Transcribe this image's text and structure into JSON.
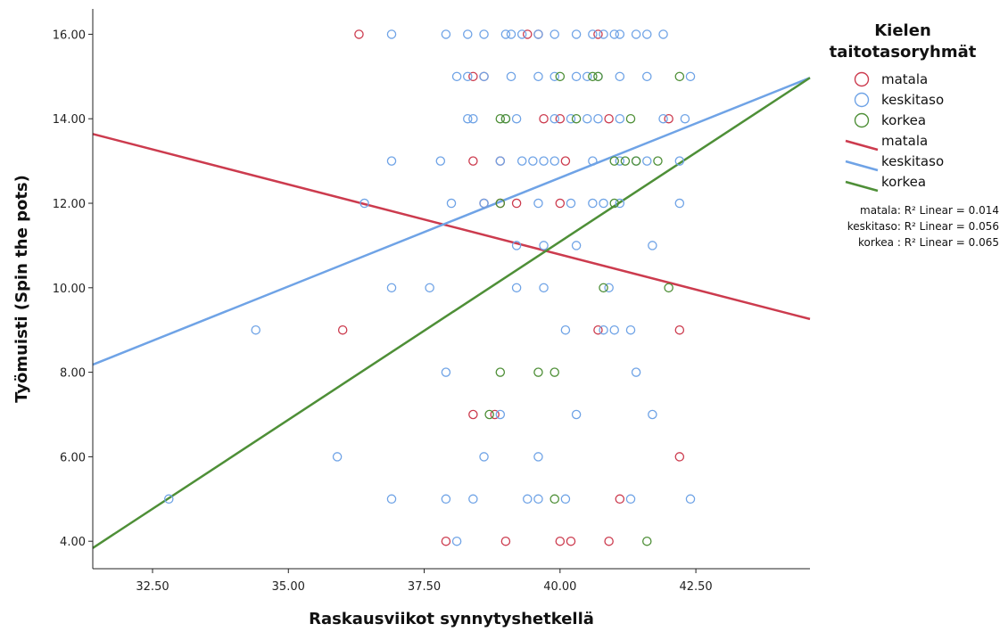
{
  "chart_data": {
    "type": "scatter",
    "xlabel": "Raskausviikot synnytyshetkellä",
    "ylabel": "Työmuisti (Spin the pots)",
    "xlim": [
      31.4,
      44.6
    ],
    "ylim": [
      3.35,
      16.6
    ],
    "x_ticks": [
      {
        "value": 32.5,
        "label": "32.50"
      },
      {
        "value": 35.0,
        "label": "35.00"
      },
      {
        "value": 37.5,
        "label": "37.50"
      },
      {
        "value": 40.0,
        "label": "40.00"
      },
      {
        "value": 42.5,
        "label": "42.50"
      }
    ],
    "y_ticks": [
      {
        "value": 4,
        "label": "4.00"
      },
      {
        "value": 6,
        "label": "6.00"
      },
      {
        "value": 8,
        "label": "8.00"
      },
      {
        "value": 10,
        "label": "10.00"
      },
      {
        "value": 12,
        "label": "12.00"
      },
      {
        "value": 14,
        "label": "14.00"
      },
      {
        "value": 16,
        "label": "16.00"
      }
    ],
    "grid": false,
    "legend_position": "right",
    "legend_title": "Kielen taitotasoryhmät",
    "series": [
      {
        "name": "matala",
        "color": "#cc3b4e",
        "points": [
          [
            36.3,
            16
          ],
          [
            39.4,
            16
          ],
          [
            39.6,
            16
          ],
          [
            40.7,
            16
          ],
          [
            38.4,
            15
          ],
          [
            38.6,
            15
          ],
          [
            39.7,
            14
          ],
          [
            40.0,
            14
          ],
          [
            40.9,
            14
          ],
          [
            42.0,
            14
          ],
          [
            38.4,
            13
          ],
          [
            38.9,
            13
          ],
          [
            40.1,
            13
          ],
          [
            38.6,
            12
          ],
          [
            38.9,
            12
          ],
          [
            39.2,
            12
          ],
          [
            40.0,
            12
          ],
          [
            36.0,
            9
          ],
          [
            40.7,
            9
          ],
          [
            42.2,
            9
          ],
          [
            38.4,
            7
          ],
          [
            38.8,
            7
          ],
          [
            42.2,
            6
          ],
          [
            41.1,
            5
          ],
          [
            37.9,
            4
          ],
          [
            39.0,
            4
          ],
          [
            40.0,
            4
          ],
          [
            40.2,
            4
          ],
          [
            40.9,
            4
          ]
        ],
        "fit": {
          "x": [
            31.4,
            44.6
          ],
          "y": [
            13.64,
            9.26
          ]
        },
        "r2_label": "matala: R² Linear = 0.014"
      },
      {
        "name": "keskitaso",
        "color": "#6fa3e6",
        "points": [
          [
            36.9,
            16
          ],
          [
            37.9,
            16
          ],
          [
            38.3,
            16
          ],
          [
            38.6,
            16
          ],
          [
            39.0,
            16
          ],
          [
            39.1,
            16
          ],
          [
            39.3,
            16
          ],
          [
            39.6,
            16
          ],
          [
            39.9,
            16
          ],
          [
            40.3,
            16
          ],
          [
            40.6,
            16
          ],
          [
            40.8,
            16
          ],
          [
            41.0,
            16
          ],
          [
            41.1,
            16
          ],
          [
            41.4,
            16
          ],
          [
            41.6,
            16
          ],
          [
            41.9,
            16
          ],
          [
            38.1,
            15
          ],
          [
            38.3,
            15
          ],
          [
            38.6,
            15
          ],
          [
            39.1,
            15
          ],
          [
            39.6,
            15
          ],
          [
            39.9,
            15
          ],
          [
            40.3,
            15
          ],
          [
            40.5,
            15
          ],
          [
            40.7,
            15
          ],
          [
            41.1,
            15
          ],
          [
            41.6,
            15
          ],
          [
            42.4,
            15
          ],
          [
            38.3,
            14
          ],
          [
            38.4,
            14
          ],
          [
            39.0,
            14
          ],
          [
            39.2,
            14
          ],
          [
            39.9,
            14
          ],
          [
            40.2,
            14
          ],
          [
            40.5,
            14
          ],
          [
            40.7,
            14
          ],
          [
            41.1,
            14
          ],
          [
            41.9,
            14
          ],
          [
            42.3,
            14
          ],
          [
            36.9,
            13
          ],
          [
            37.8,
            13
          ],
          [
            38.9,
            13
          ],
          [
            39.3,
            13
          ],
          [
            39.5,
            13
          ],
          [
            39.7,
            13
          ],
          [
            39.9,
            13
          ],
          [
            40.6,
            13
          ],
          [
            41.1,
            13
          ],
          [
            41.4,
            13
          ],
          [
            41.6,
            13
          ],
          [
            42.2,
            13
          ],
          [
            36.4,
            12
          ],
          [
            38.0,
            12
          ],
          [
            38.6,
            12
          ],
          [
            39.6,
            12
          ],
          [
            40.2,
            12
          ],
          [
            40.6,
            12
          ],
          [
            40.8,
            12
          ],
          [
            41.1,
            12
          ],
          [
            42.2,
            12
          ],
          [
            39.2,
            11
          ],
          [
            39.7,
            11
          ],
          [
            40.3,
            11
          ],
          [
            41.7,
            11
          ],
          [
            36.9,
            10
          ],
          [
            37.6,
            10
          ],
          [
            39.2,
            10
          ],
          [
            39.7,
            10
          ],
          [
            40.9,
            10
          ],
          [
            34.4,
            9
          ],
          [
            40.1,
            9
          ],
          [
            40.8,
            9
          ],
          [
            41.0,
            9
          ],
          [
            41.3,
            9
          ],
          [
            37.9,
            8
          ],
          [
            41.4,
            8
          ],
          [
            38.9,
            7
          ],
          [
            40.3,
            7
          ],
          [
            41.7,
            7
          ],
          [
            35.9,
            6
          ],
          [
            38.6,
            6
          ],
          [
            39.6,
            6
          ],
          [
            32.8,
            5
          ],
          [
            36.9,
            5
          ],
          [
            37.9,
            5
          ],
          [
            38.4,
            5
          ],
          [
            39.4,
            5
          ],
          [
            39.6,
            5
          ],
          [
            40.1,
            5
          ],
          [
            41.3,
            5
          ],
          [
            42.4,
            5
          ],
          [
            38.1,
            4
          ]
        ],
        "fit": {
          "x": [
            31.4,
            44.6
          ],
          "y": [
            8.18,
            14.97
          ]
        },
        "r2_label": "keskitaso: R² Linear = 0.056"
      },
      {
        "name": "korkea",
        "color": "#4e8f37",
        "points": [
          [
            40.0,
            15
          ],
          [
            40.6,
            15
          ],
          [
            40.7,
            15
          ],
          [
            42.2,
            15
          ],
          [
            38.9,
            14
          ],
          [
            39.0,
            14
          ],
          [
            40.3,
            14
          ],
          [
            41.3,
            14
          ],
          [
            41.0,
            13
          ],
          [
            41.2,
            13
          ],
          [
            41.4,
            13
          ],
          [
            41.8,
            13
          ],
          [
            38.9,
            12
          ],
          [
            41.0,
            12
          ],
          [
            40.8,
            10
          ],
          [
            42.0,
            10
          ],
          [
            38.9,
            8
          ],
          [
            39.6,
            8
          ],
          [
            39.9,
            8
          ],
          [
            38.7,
            7
          ],
          [
            39.9,
            5
          ],
          [
            41.6,
            4
          ]
        ],
        "fit": {
          "x": [
            31.4,
            44.6
          ],
          "y": [
            3.84,
            14.97
          ]
        },
        "r2_label": "korkea : R² Linear = 0.065"
      }
    ]
  }
}
